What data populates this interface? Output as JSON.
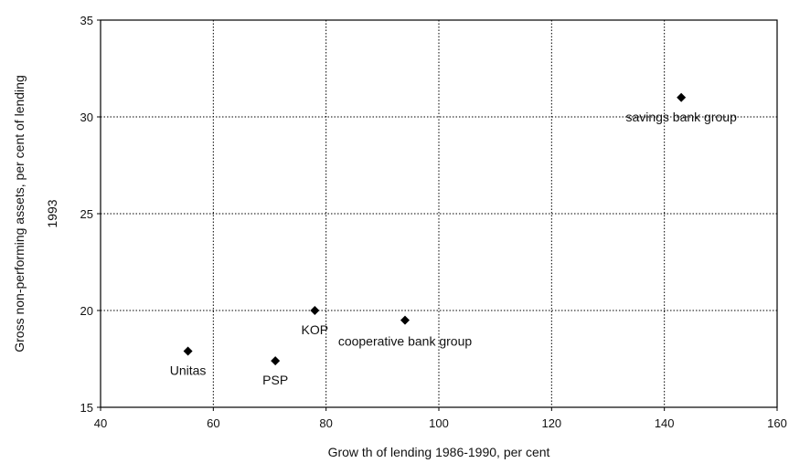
{
  "chart_data": {
    "type": "scatter",
    "xlabel": "Grow th of lending 1986-1990, per cent",
    "ylabel_line1": "Gross non-performing assets, per cent of lending",
    "ylabel_line2": "1993",
    "xlim": [
      40,
      160
    ],
    "ylim": [
      15,
      35
    ],
    "xticks": [
      40,
      60,
      80,
      100,
      120,
      140,
      160
    ],
    "yticks": [
      15,
      20,
      25,
      30,
      35
    ],
    "grid": true,
    "marker_color": "#000000",
    "points": [
      {
        "label": "Unitas",
        "x": 55.5,
        "y": 17.9
      },
      {
        "label": "PSP",
        "x": 71,
        "y": 17.4
      },
      {
        "label": "KOP",
        "x": 78,
        "y": 20.0
      },
      {
        "label": "cooperative bank group",
        "x": 94,
        "y": 19.5
      },
      {
        "label": "savings bank group",
        "x": 143,
        "y": 31.0
      }
    ]
  }
}
